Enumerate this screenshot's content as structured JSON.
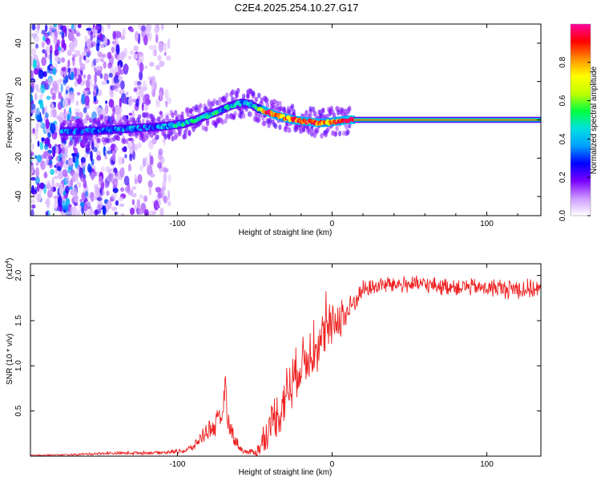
{
  "title": "C2E4.2025.254.10.27.G17",
  "chart_data": [
    {
      "type": "heatmap",
      "title": "C2E4.2025.254.10.27.G17",
      "xlabel": "Height of straight line (km)",
      "ylabel": "Frequency (Hz)",
      "xlim": [
        -195,
        135
      ],
      "ylim": [
        -50,
        50
      ],
      "x_ticks": [
        -100,
        0,
        100
      ],
      "y_ticks": [
        -40,
        -20,
        0,
        20,
        40
      ],
      "colorbar": {
        "label": "Normalized spectral amplitude",
        "range": [
          0,
          1
        ],
        "ticks": [
          "0.0",
          "0.2",
          "0.4",
          "0.6",
          "0.8"
        ],
        "colors": [
          "#ffffff",
          "#cc99ff",
          "#7a00ff",
          "#0000ff",
          "#00a0ff",
          "#00e0e0",
          "#00ff40",
          "#c0ff00",
          "#ffff00",
          "#ff9000",
          "#ff0000",
          "#ff00a0"
        ]
      },
      "ridge": {
        "x": [
          -175,
          -165,
          -150,
          -130,
          -110,
          -95,
          -85,
          -75,
          -65,
          -58,
          -52,
          -48,
          -44,
          -40,
          -35,
          -30,
          -25,
          -20,
          -15,
          -10,
          -5,
          0,
          5,
          10,
          15,
          135
        ],
        "y": [
          -6,
          -6,
          -5.5,
          -4.5,
          -3.5,
          -2,
          1,
          4,
          7.5,
          9,
          8,
          6,
          5,
          3.5,
          2,
          1,
          0,
          -0.5,
          -1,
          -1.5,
          -1.5,
          -1,
          -0.5,
          0,
          0,
          0
        ],
        "amplitude": [
          0.35,
          0.3,
          0.3,
          0.32,
          0.35,
          0.45,
          0.45,
          0.45,
          0.4,
          0.35,
          0.38,
          0.5,
          0.85,
          0.9,
          0.8,
          0.8,
          0.85,
          0.85,
          0.9,
          0.85,
          0.8,
          0.8,
          0.85,
          0.9,
          0.95,
          0.95
        ]
      },
      "noise_extent_km": [
        -195,
        -105
      ]
    },
    {
      "type": "line",
      "xlabel": "Height of straight line (km)",
      "ylabel": "SNR (10 * v/v)",
      "y_multiplier_label": "(x10",
      "y_multiplier_exp": "4",
      "y_multiplier_close": ")",
      "xlim": [
        -195,
        135
      ],
      "ylim": [
        0,
        2.13
      ],
      "x_ticks": [
        -100,
        0,
        100
      ],
      "y_ticks": [
        0.5,
        1.0,
        1.5,
        2.0
      ],
      "y_tick_labels": [
        "0.5",
        "1.0",
        "1.5",
        "2.0"
      ],
      "series_color": "#ee2222",
      "series": [
        {
          "name": "SNR",
          "x": [
            -195,
            -170,
            -150,
            -130,
            -110,
            -95,
            -90,
            -85,
            -80,
            -75,
            -72,
            -70,
            -69,
            -68,
            -66,
            -64,
            -62,
            -58,
            -54,
            -50,
            -48,
            -46,
            -44,
            -42,
            -40,
            -38,
            -36,
            -34,
            -32,
            -30,
            -28,
            -26,
            -24,
            -22,
            -20,
            -18,
            -16,
            -14,
            -12,
            -10,
            -8,
            -6,
            -4,
            -2,
            0,
            2,
            4,
            6,
            8,
            10,
            12,
            14,
            16,
            18,
            20,
            24,
            28,
            32,
            40,
            50,
            60,
            70,
            80,
            90,
            100,
            110,
            120,
            130,
            135
          ],
          "y": [
            0.01,
            0.015,
            0.03,
            0.035,
            0.04,
            0.06,
            0.1,
            0.2,
            0.3,
            0.35,
            0.4,
            0.6,
            0.95,
            0.45,
            0.3,
            0.25,
            0.15,
            0.06,
            0.04,
            0.05,
            0.06,
            0.1,
            0.2,
            0.25,
            0.35,
            0.4,
            0.5,
            0.45,
            0.6,
            0.7,
            0.75,
            0.8,
            0.9,
            0.95,
            1.0,
            1.05,
            1.1,
            1.15,
            1.2,
            1.2,
            1.25,
            1.3,
            1.35,
            1.4,
            1.45,
            1.5,
            1.5,
            1.55,
            1.55,
            1.6,
            1.65,
            1.7,
            1.75,
            1.8,
            1.85,
            1.85,
            1.88,
            1.9,
            1.9,
            1.9,
            1.9,
            1.88,
            1.88,
            1.87,
            1.86,
            1.86,
            1.85,
            1.85,
            1.85
          ],
          "spread": [
            0.005,
            0.01,
            0.015,
            0.02,
            0.02,
            0.03,
            0.05,
            0.08,
            0.12,
            0.15,
            0.15,
            0.18,
            0.05,
            0.15,
            0.12,
            0.1,
            0.08,
            0.04,
            0.03,
            0.05,
            0.1,
            0.12,
            0.15,
            0.18,
            0.2,
            0.25,
            0.3,
            0.3,
            0.3,
            0.3,
            0.3,
            0.3,
            0.3,
            0.3,
            0.3,
            0.3,
            0.3,
            0.3,
            0.3,
            0.3,
            0.3,
            0.3,
            0.3,
            0.3,
            0.25,
            0.25,
            0.25,
            0.25,
            0.25,
            0.25,
            0.2,
            0.15,
            0.12,
            0.1,
            0.1,
            0.1,
            0.1,
            0.1,
            0.1,
            0.1,
            0.1,
            0.1,
            0.1,
            0.1,
            0.1,
            0.12,
            0.12,
            0.12,
            0.12
          ]
        }
      ]
    }
  ]
}
